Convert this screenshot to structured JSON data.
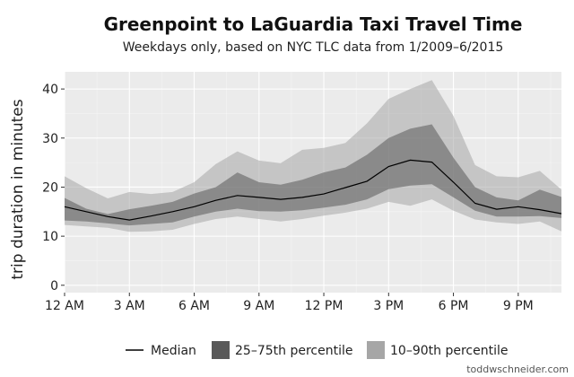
{
  "chart_data": {
    "type": "area",
    "title": "Greenpoint to LaGuardia Taxi Travel Time",
    "subtitle": "Weekdays only, based on NYC TLC data from 1/2009–6/2015",
    "xlabel": "",
    "ylabel": "trip duration in minutes",
    "x": [
      0,
      1,
      2,
      3,
      4,
      5,
      6,
      7,
      8,
      9,
      10,
      11,
      12,
      13,
      14,
      15,
      16,
      17,
      18,
      19,
      20,
      21,
      22,
      23
    ],
    "xlim": [
      0,
      23
    ],
    "ylim": [
      -1.5,
      43.5
    ],
    "x_ticks": [
      {
        "x": 0,
        "label": "12 AM"
      },
      {
        "x": 3,
        "label": "3 AM"
      },
      {
        "x": 6,
        "label": "6 AM"
      },
      {
        "x": 9,
        "label": "9 AM"
      },
      {
        "x": 12,
        "label": "12 PM"
      },
      {
        "x": 15,
        "label": "3 PM"
      },
      {
        "x": 18,
        "label": "6 PM"
      },
      {
        "x": 21,
        "label": "9 PM"
      }
    ],
    "y_ticks": [
      0,
      10,
      20,
      30,
      40
    ],
    "grid": true,
    "legend_position": "bottom",
    "series": [
      {
        "name": "Median",
        "values": [
          16,
          15,
          14,
          13.3,
          14.1,
          15,
          16,
          17.3,
          18.3,
          17.9,
          17.5,
          17.9,
          18.6,
          19.9,
          21.2,
          24.2,
          25.5,
          25.1,
          21,
          16.7,
          15.5,
          16,
          15.4,
          14.6
        ],
        "color": "#000000"
      },
      {
        "name": "25–75th percentile",
        "low": [
          13.2,
          13,
          12.6,
          12.2,
          12.5,
          12.8,
          14,
          15,
          15.6,
          15.1,
          15,
          15.3,
          15.8,
          16.4,
          17.5,
          19.6,
          20.3,
          20.6,
          17.9,
          15.2,
          14,
          14,
          14.1,
          13.7
        ],
        "high": [
          17.8,
          15.6,
          14.5,
          15.5,
          16.2,
          17,
          18.7,
          20,
          23,
          21,
          20.5,
          21.5,
          23,
          24,
          26.6,
          30,
          31.9,
          32.8,
          26,
          20,
          17.9,
          17.3,
          19.5,
          18
        ],
        "color": "#595959"
      },
      {
        "name": "10–90th percentile",
        "low": [
          12.3,
          12,
          11.7,
          10.9,
          11,
          11.3,
          12.5,
          13.5,
          14,
          13.5,
          13,
          13.5,
          14.2,
          14.8,
          15.6,
          17,
          16.2,
          17.5,
          15.2,
          13.4,
          12.8,
          12.5,
          13,
          11
        ],
        "high": [
          22.2,
          19.8,
          17.7,
          19,
          18.6,
          19,
          21,
          24.7,
          27.3,
          25.4,
          24.9,
          27.6,
          28,
          29,
          33,
          38,
          40,
          41.8,
          34.5,
          24.5,
          22.2,
          22,
          23.3,
          19.5
        ],
        "color": "#a6a6a6"
      }
    ]
  },
  "footer": {
    "credit": "toddwschneider.com"
  }
}
